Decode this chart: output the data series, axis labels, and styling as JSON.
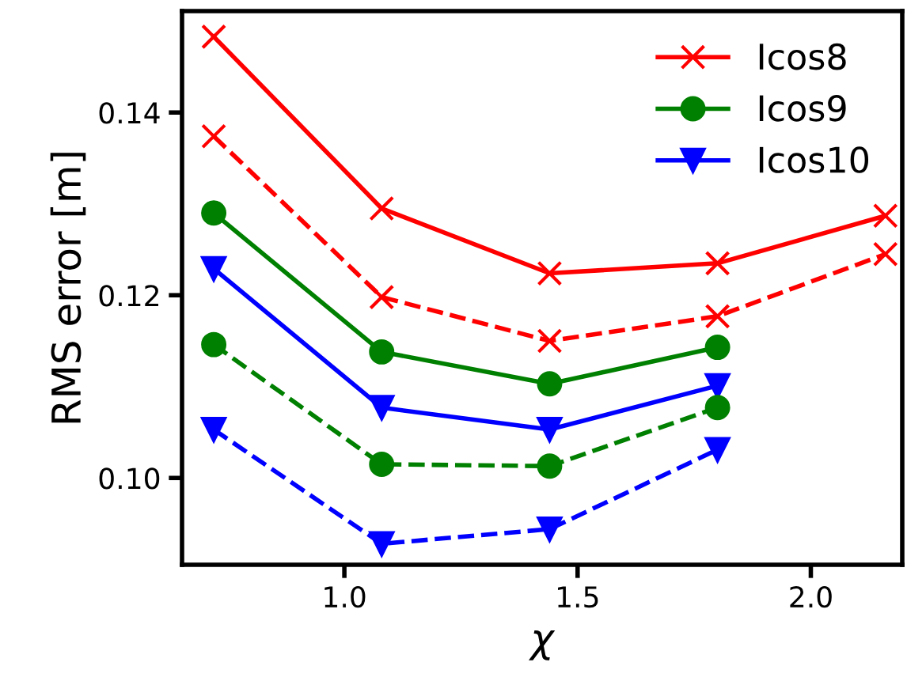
{
  "chart_data": {
    "type": "line",
    "xlabel": "χ",
    "ylabel": "RMS error [m]",
    "x": [
      0.72,
      1.08,
      1.44,
      1.8,
      2.16
    ],
    "series": [
      {
        "name": "Icos8",
        "color": "#ff0000",
        "marker": "cross",
        "line_style": "solid",
        "values": [
          0.1483,
          0.1295,
          0.1224,
          0.1235,
          0.1287
        ]
      },
      {
        "name": "Icos9",
        "color": "#008000",
        "marker": "circle",
        "line_style": "solid",
        "values": [
          0.129,
          0.1138,
          0.1103,
          0.1143,
          null
        ]
      },
      {
        "name": "Icos10",
        "color": "#0000ff",
        "marker": "triangle",
        "line_style": "solid",
        "values": [
          0.1229,
          0.1077,
          0.1053,
          0.1101,
          null
        ]
      },
      {
        "color": "#ff0000",
        "marker": "cross",
        "line_style": "dashed",
        "values": [
          0.1374,
          0.1198,
          0.115,
          0.1177,
          0.1245
        ]
      },
      {
        "color": "#008000",
        "marker": "circle",
        "line_style": "dashed",
        "values": [
          0.1146,
          0.1015,
          0.1013,
          0.1077,
          null
        ]
      },
      {
        "color": "#0000ff",
        "marker": "triangle",
        "line_style": "dashed",
        "values": [
          0.1053,
          0.0928,
          0.0944,
          0.1031,
          null
        ]
      }
    ],
    "xlim": [
      0.652,
      2.196
    ],
    "ylim": [
      0.0905,
      0.1511
    ],
    "xticks": [
      {
        "value": 1.0,
        "label": "1.0"
      },
      {
        "value": 1.5,
        "label": "1.5"
      },
      {
        "value": 2.0,
        "label": "2.0"
      }
    ],
    "yticks": [
      {
        "value": 0.1,
        "label": "0.10"
      },
      {
        "value": 0.12,
        "label": "0.12"
      },
      {
        "value": 0.14,
        "label": "0.14"
      }
    ],
    "grid": false,
    "legend": "top right"
  }
}
